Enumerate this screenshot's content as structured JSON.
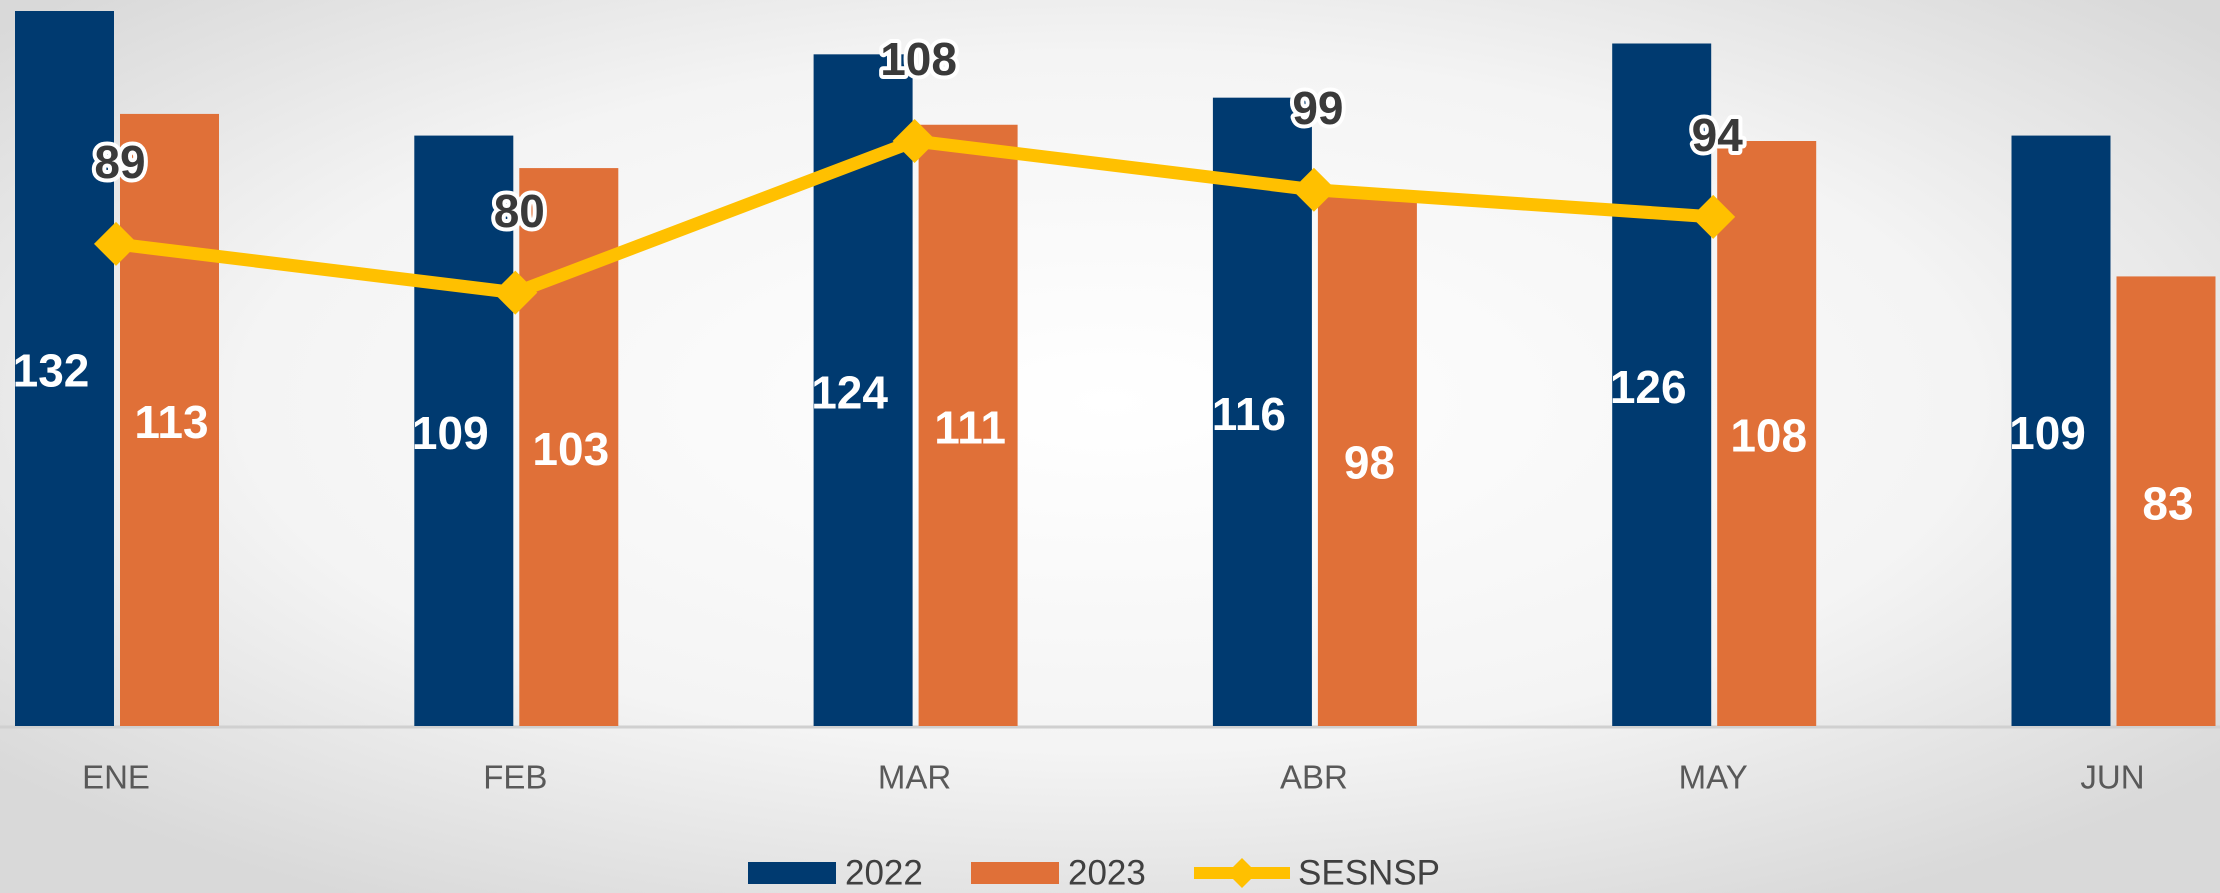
{
  "chart_data": {
    "type": "bar",
    "categories": [
      "ENE",
      "FEB",
      "MAR",
      "ABR",
      "MAY",
      "JUN"
    ],
    "series": [
      {
        "name": "2022",
        "color": "#003a70",
        "type": "bar",
        "values": [
          132,
          109,
          124,
          116,
          126,
          109
        ]
      },
      {
        "name": "2023",
        "color": "#e07038",
        "type": "bar",
        "values": [
          113,
          103,
          111,
          98,
          108,
          83
        ]
      },
      {
        "name": "SESNSP",
        "color": "#ffc000",
        "type": "line",
        "values": [
          89,
          80,
          108,
          99,
          94,
          null
        ]
      }
    ],
    "ylim": [
      0,
      132
    ],
    "legend": "bottom"
  }
}
